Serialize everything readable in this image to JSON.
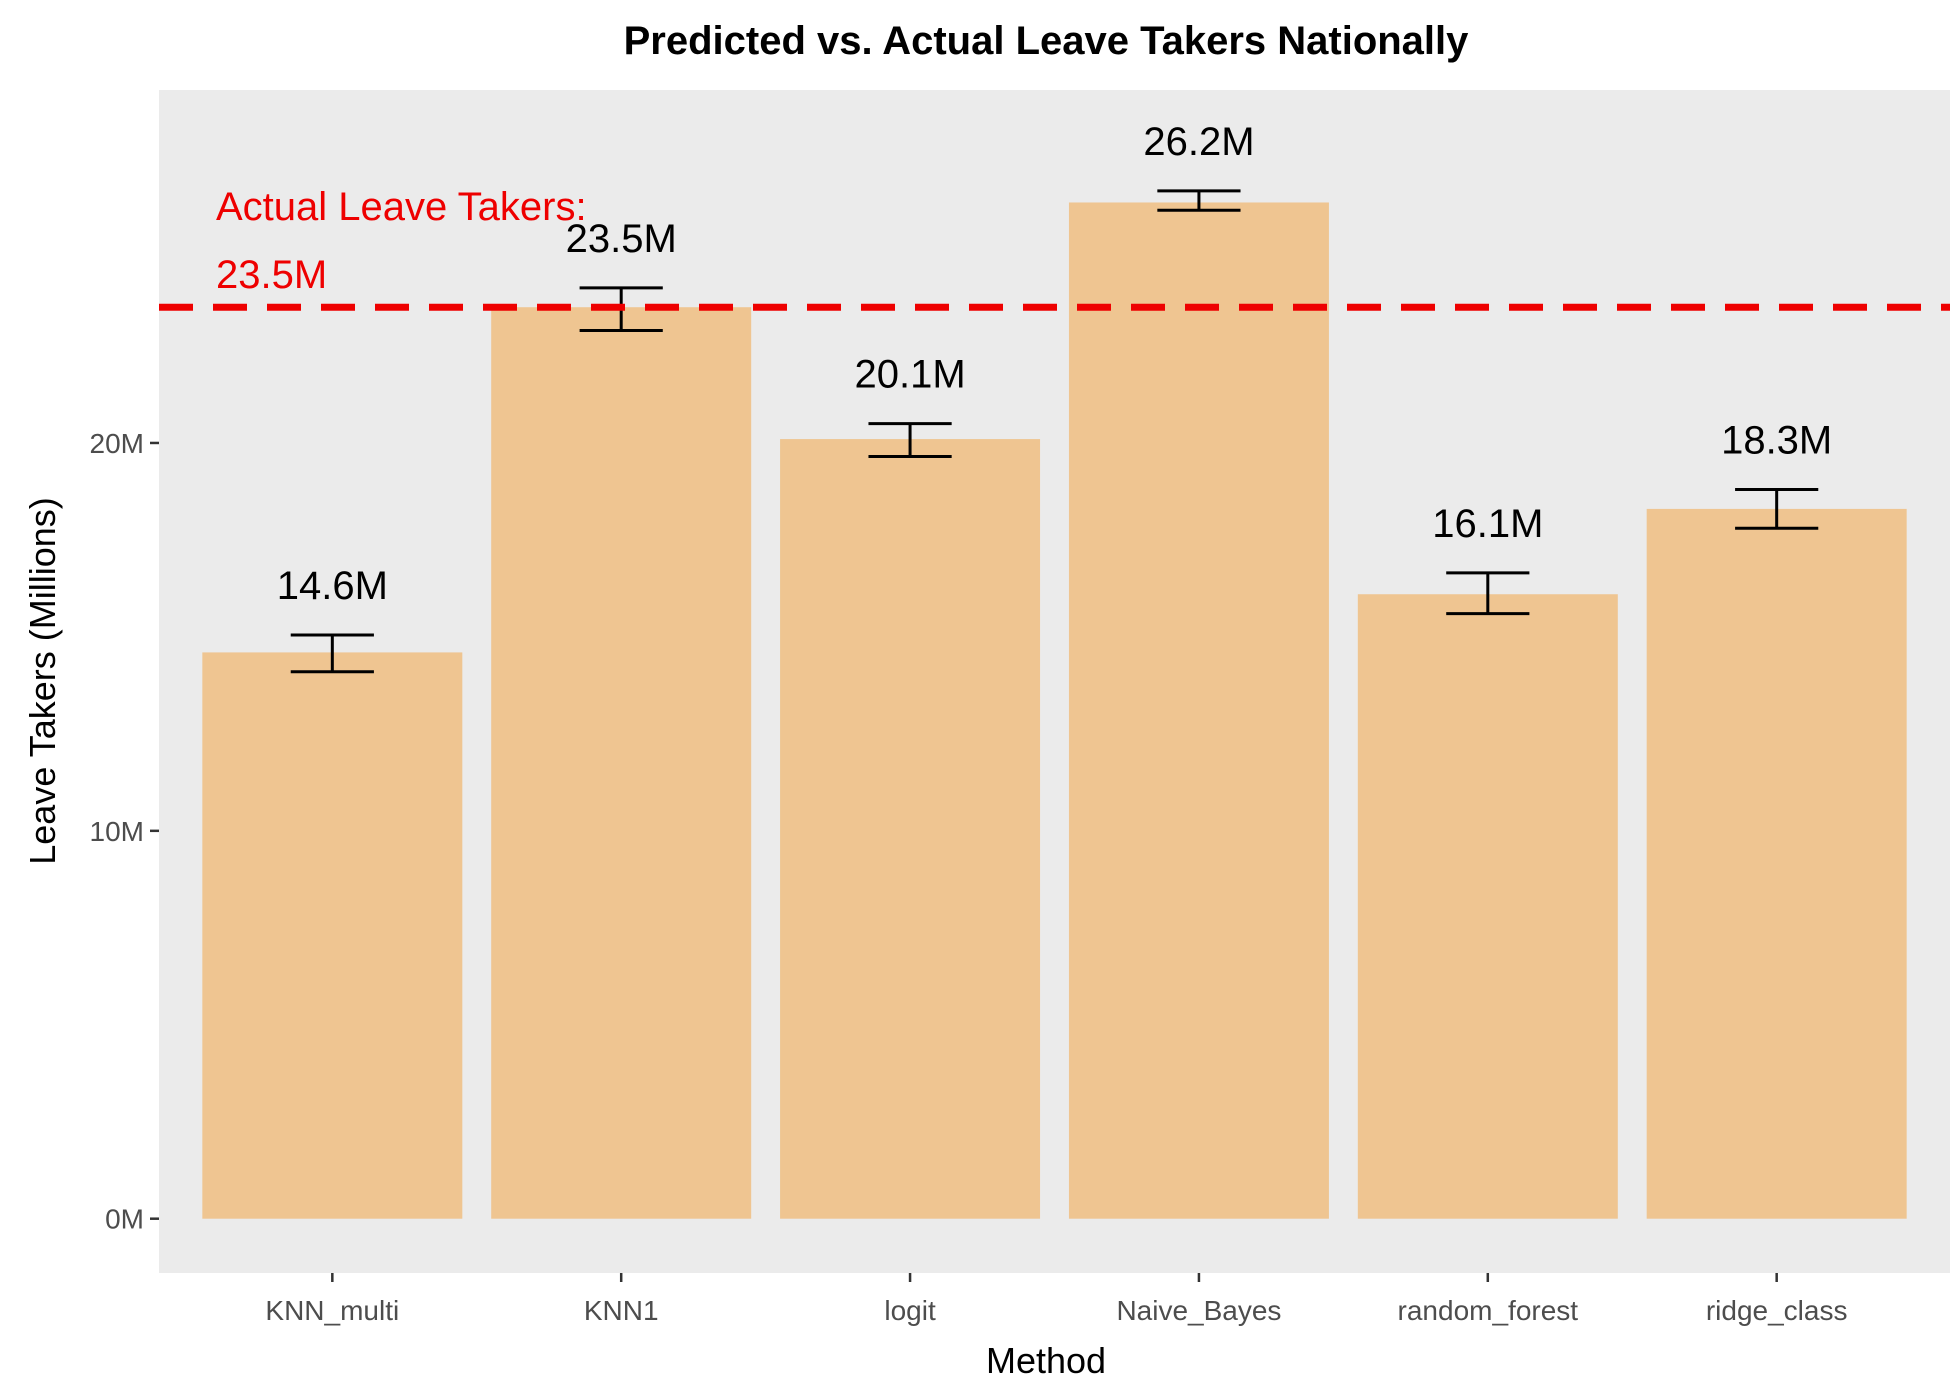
{
  "chart_data": {
    "type": "bar",
    "title": "Predicted vs. Actual Leave Takers Nationally",
    "xlabel": "Method",
    "ylabel": "Leave Takers (Millions)",
    "categories": [
      "KNN_multi",
      "KNN1",
      "logit",
      "Naive_Bayes",
      "random_forest",
      "ridge_class"
    ],
    "values": [
      14.6,
      23.5,
      20.1,
      26.2,
      16.1,
      18.3
    ],
    "value_labels": [
      "14.6M",
      "23.5M",
      "20.1M",
      "26.2M",
      "16.1M",
      "18.3M"
    ],
    "error_low": [
      14.1,
      22.9,
      19.65,
      26.0,
      15.6,
      17.8
    ],
    "error_high": [
      15.05,
      24.0,
      20.5,
      26.5,
      16.65,
      18.8
    ],
    "yticks": [
      0,
      10,
      20
    ],
    "ytick_labels": [
      "0M",
      "10M",
      "20M"
    ],
    "ylim": [
      -1.4,
      29.1
    ],
    "reference_line": {
      "value": 23.5,
      "label_line1": "Actual Leave Takers:",
      "label_line2": "23.5M",
      "color": "#ee0000",
      "style": "dashed"
    },
    "bar_color": "#efc591",
    "panel_background": "#ebebeb",
    "grid": false
  }
}
